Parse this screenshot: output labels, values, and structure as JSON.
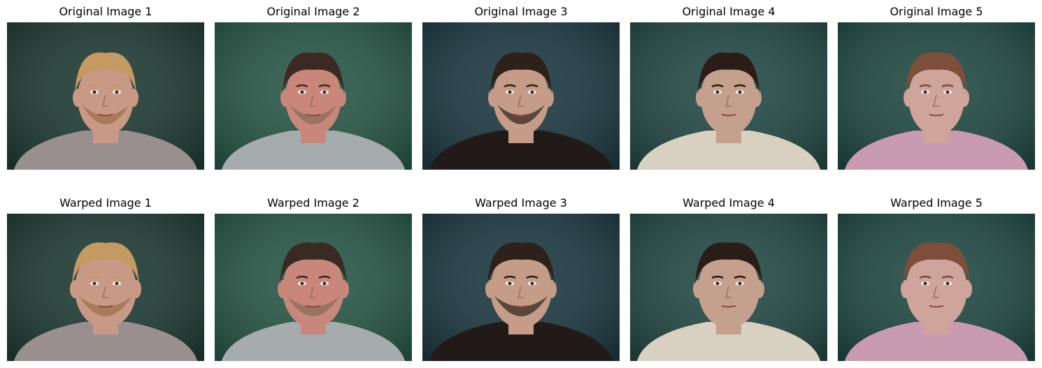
{
  "rows": [
    {
      "panels": [
        {
          "title": "Original Image 1",
          "hair": "#c59a62",
          "skin": "#c89a86",
          "shirt": "#9a8f8f",
          "bg": "#1f3c34",
          "beard": "#a07048"
        },
        {
          "title": "Original Image 2",
          "hair": "#3b2a22",
          "skin": "#c9877c",
          "shirt": "#a6abad",
          "bg": "#285848",
          "beard": "#8a6e58"
        },
        {
          "title": "Original Image 3",
          "hair": "#2e2119",
          "skin": "#c49c88",
          "shirt": "#221a18",
          "bg": "#1d3a42",
          "beard": "#3a2a22"
        },
        {
          "title": "Original Image 4",
          "hair": "#2a1d17",
          "skin": "#c6a08e",
          "shirt": "#d8d0c0",
          "bg": "#244a46",
          "beard": ""
        },
        {
          "title": "Original Image 5",
          "hair": "#7d4f3a",
          "skin": "#cfa49a",
          "shirt": "#c89bb0",
          "bg": "#224a44",
          "beard": ""
        }
      ]
    },
    {
      "panels": [
        {
          "title": "Warped Image 1",
          "hair": "#c59a62",
          "skin": "#c89a86",
          "shirt": "#9a8f8f",
          "bg": "#1f3c34",
          "beard": "#a07048"
        },
        {
          "title": "Warped Image 2",
          "hair": "#3b2a22",
          "skin": "#c9877c",
          "shirt": "#a6abad",
          "bg": "#285848",
          "beard": "#8a6e58"
        },
        {
          "title": "Warped Image 3",
          "hair": "#2e2119",
          "skin": "#c49c88",
          "shirt": "#221a18",
          "bg": "#1d3a42",
          "beard": "#3a2a22"
        },
        {
          "title": "Warped Image 4",
          "hair": "#2a1d17",
          "skin": "#c6a08e",
          "shirt": "#d8d0c0",
          "bg": "#244a46",
          "beard": ""
        },
        {
          "title": "Warped Image 5",
          "hair": "#7d4f3a",
          "skin": "#cfa49a",
          "shirt": "#c89bb0",
          "bg": "#224a44",
          "beard": ""
        }
      ]
    }
  ]
}
